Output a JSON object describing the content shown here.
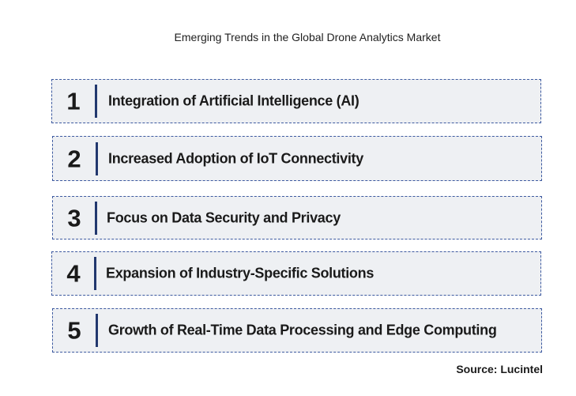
{
  "title": "Emerging Trends in the Global Drone Analytics Market",
  "trends": [
    {
      "number": "1",
      "label": "Integration of Artificial Intelligence (AI)"
    },
    {
      "number": "2",
      "label": "Increased Adoption of IoT Connectivity"
    },
    {
      "number": "3",
      "label": "Focus on Data Security and Privacy"
    },
    {
      "number": "4",
      "label": "Expansion of Industry-Specific Solutions"
    },
    {
      "number": "5",
      "label": "Growth of Real-Time Data Processing and Edge Computing"
    }
  ],
  "source": "Source: Lucintel",
  "colors": {
    "box_fill": "#eef0f3",
    "box_border": "#3d5aa0",
    "divider": "#22386e"
  }
}
